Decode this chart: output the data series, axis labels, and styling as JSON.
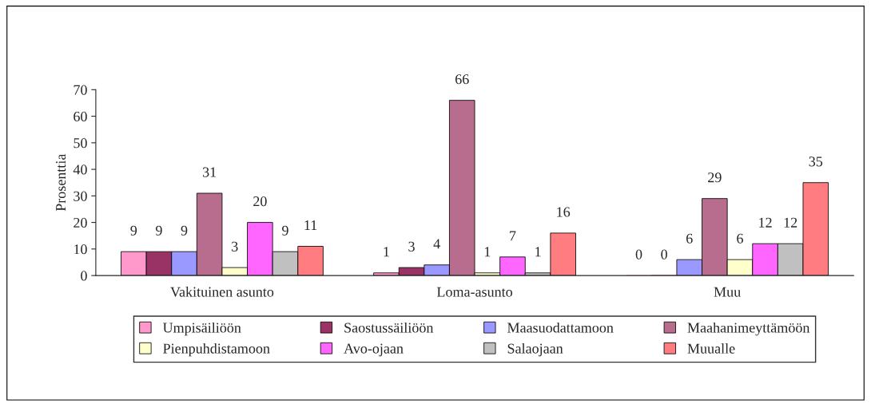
{
  "chart_data": {
    "type": "bar",
    "ylabel": "Prosenttia",
    "categories": [
      "Vakituinen asunto",
      "Loma-asunto",
      "Muu"
    ],
    "series": [
      {
        "name": "Umpisäiliöön",
        "color": "#ff99cc",
        "values": [
          9,
          1,
          0
        ]
      },
      {
        "name": "Saostussäiliöön",
        "color": "#993366",
        "values": [
          9,
          3,
          0
        ]
      },
      {
        "name": "Maasuodattamoon",
        "color": "#9999ff",
        "values": [
          9,
          4,
          6
        ]
      },
      {
        "name": "Maahanimeyttämöön",
        "color": "#b86d8e",
        "values": [
          31,
          66,
          29
        ]
      },
      {
        "name": "Pienpuhdistamoon",
        "color": "#ffffcc",
        "values": [
          3,
          1,
          6
        ]
      },
      {
        "name": "Avo-ojaan",
        "color": "#ff66ff",
        "values": [
          20,
          7,
          12
        ]
      },
      {
        "name": "Salaojaan",
        "color": "#c0c0c0",
        "values": [
          9,
          1,
          12
        ]
      },
      {
        "name": "Muualle",
        "color": "#ff7c80",
        "values": [
          11,
          16,
          35
        ]
      }
    ],
    "ylim": [
      0,
      70
    ],
    "yticks": [
      0,
      10,
      20,
      30,
      40,
      50,
      60,
      70
    ],
    "data_labels": true,
    "grid": false,
    "legend": "bottom"
  }
}
